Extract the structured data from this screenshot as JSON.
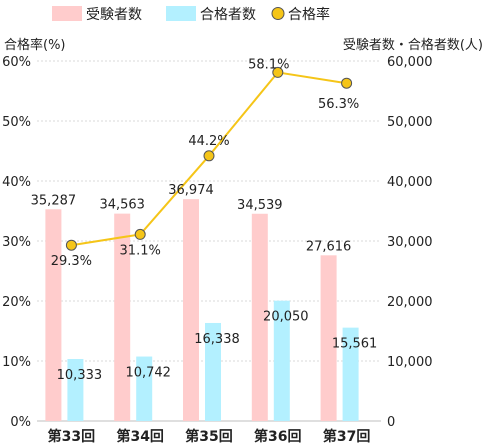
{
  "chart_data": {
    "type": "bar",
    "categories": [
      "第33回",
      "第34回",
      "第35回",
      "第36回",
      "第37回"
    ],
    "series": [
      {
        "name": "受験者数",
        "type": "bar",
        "axis": "right",
        "color": "#ffcccc",
        "values": [
          35287,
          34563,
          36974,
          34539,
          27616
        ],
        "labels": [
          "35,287",
          "34,563",
          "36,974",
          "34,539",
          "27,616"
        ]
      },
      {
        "name": "合格者数",
        "type": "bar",
        "axis": "right",
        "color": "#b3f0ff",
        "values": [
          10333,
          10742,
          16338,
          20050,
          15561
        ],
        "labels": [
          "10,333",
          "10,742",
          "16,338",
          "20,050",
          "15,561"
        ]
      },
      {
        "name": "合格率",
        "type": "line",
        "axis": "left",
        "color": "#f5c518",
        "values": [
          29.3,
          31.1,
          44.2,
          58.1,
          56.3
        ],
        "labels": [
          "29.3%",
          "31.1%",
          "44.2%",
          "58.1%",
          "56.3%"
        ]
      }
    ],
    "ylabel_left": "合格率(%)",
    "ylabel_right": "受験者数・合格者数(人)",
    "ylim_left": [
      0,
      60
    ],
    "ylim_right": [
      0,
      60000
    ],
    "yticks_left": [
      "0%",
      "10%",
      "20%",
      "30%",
      "40%",
      "50%",
      "60%"
    ],
    "yticks_right": [
      "0",
      "10,000",
      "20,000",
      "30,000",
      "40,000",
      "50,000",
      "60,000"
    ],
    "legend": "top",
    "grid": true
  }
}
